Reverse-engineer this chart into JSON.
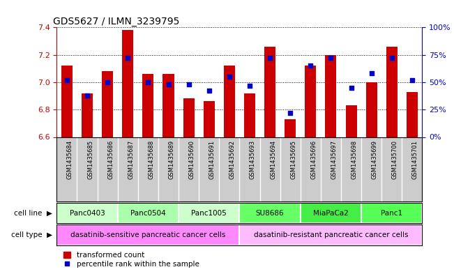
{
  "title": "GDS5627 / ILMN_3239795",
  "samples": [
    "GSM1435684",
    "GSM1435685",
    "GSM1435686",
    "GSM1435687",
    "GSM1435688",
    "GSM1435689",
    "GSM1435690",
    "GSM1435691",
    "GSM1435692",
    "GSM1435693",
    "GSM1435694",
    "GSM1435695",
    "GSM1435696",
    "GSM1435697",
    "GSM1435698",
    "GSM1435699",
    "GSM1435700",
    "GSM1435701"
  ],
  "transformed_count": [
    7.12,
    6.92,
    7.08,
    7.38,
    7.06,
    7.06,
    6.88,
    6.86,
    7.12,
    6.92,
    7.26,
    6.73,
    7.12,
    7.2,
    6.83,
    7.0,
    7.26,
    6.93
  ],
  "percentile_rank": [
    52,
    38,
    50,
    72,
    50,
    48,
    48,
    42,
    55,
    47,
    72,
    22,
    65,
    72,
    45,
    58,
    72,
    52
  ],
  "ylim_left": [
    6.6,
    7.4
  ],
  "ylim_right": [
    0,
    100
  ],
  "yticks_left": [
    6.6,
    6.8,
    7.0,
    7.2,
    7.4
  ],
  "yticks_right": [
    0,
    25,
    50,
    75,
    100
  ],
  "ytick_labels_right": [
    "0%",
    "25%",
    "50%",
    "75%",
    "100%"
  ],
  "bar_color": "#cc0000",
  "dot_color": "#0000cc",
  "bar_bottom": 6.6,
  "cell_line_groups": [
    {
      "label": "Panc0403",
      "start": 0,
      "end": 3,
      "color": "#ccffcc"
    },
    {
      "label": "Panc0504",
      "start": 3,
      "end": 6,
      "color": "#aaffaa"
    },
    {
      "label": "Panc1005",
      "start": 6,
      "end": 9,
      "color": "#ccffcc"
    },
    {
      "label": "SU8686",
      "start": 9,
      "end": 12,
      "color": "#66ff66"
    },
    {
      "label": "MiaPaCa2",
      "start": 12,
      "end": 15,
      "color": "#44ee44"
    },
    {
      "label": "Panc1",
      "start": 15,
      "end": 18,
      "color": "#55ff55"
    }
  ],
  "cell_type_groups": [
    {
      "label": "dasatinib-sensitive pancreatic cancer cells",
      "start": 0,
      "end": 9,
      "color": "#ff88ff"
    },
    {
      "label": "dasatinib-resistant pancreatic cancer cells",
      "start": 9,
      "end": 18,
      "color": "#ffbbff"
    }
  ],
  "legend_bar_label": "transformed count",
  "legend_dot_label": "percentile rank within the sample",
  "bar_color_legend": "#cc0000",
  "dot_color_legend": "#0000cc",
  "xlabel_color": "#cc0000",
  "ylabel_right_color": "#0000cc",
  "sample_label_bg": "#cccccc",
  "background_fig": "#ffffff"
}
